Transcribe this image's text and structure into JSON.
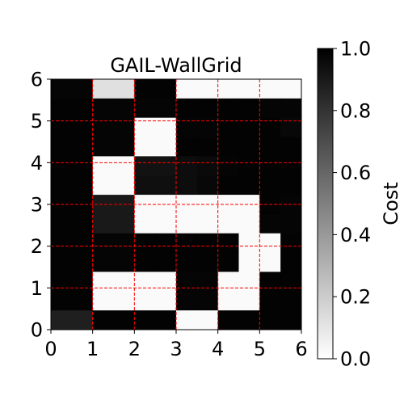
{
  "chart_data": {
    "type": "heatmap",
    "title": "GAIL-WallGrid",
    "xlabel": "",
    "ylabel": "",
    "xlim": [
      0,
      6
    ],
    "ylim": [
      0,
      6
    ],
    "xticks": [
      "0",
      "1",
      "2",
      "3",
      "4",
      "5",
      "6"
    ],
    "yticks": [
      "0",
      "1",
      "2",
      "3",
      "4",
      "5",
      "6"
    ],
    "grid": true,
    "grid_color": "#ff0000",
    "colormap": "gray_r",
    "colorbar": {
      "label": "Cost",
      "min": 0.0,
      "max": 1.0,
      "ticks": [
        "0.0",
        "0.2",
        "0.4",
        "0.6",
        "0.8",
        "1.0"
      ]
    },
    "rows_top_to_bottom": [
      [
        0.98,
        0.98,
        0.12,
        0.12,
        0.99,
        0.99,
        0.02,
        0.02,
        0.02,
        0.02,
        0.02,
        0.02
      ],
      [
        0.99,
        0.99,
        0.98,
        0.98,
        0.98,
        0.98,
        0.99,
        0.99,
        0.99,
        0.99,
        0.98,
        0.98
      ],
      [
        0.99,
        0.99,
        0.98,
        0.98,
        0.02,
        0.02,
        0.98,
        0.98,
        0.99,
        0.99,
        0.99,
        0.97
      ],
      [
        0.99,
        0.99,
        0.98,
        0.98,
        0.02,
        0.02,
        0.99,
        0.99,
        0.99,
        0.99,
        0.99,
        0.99
      ],
      [
        0.99,
        0.99,
        0.02,
        0.02,
        0.93,
        0.93,
        0.95,
        0.96,
        0.98,
        0.99,
        0.99,
        0.99
      ],
      [
        0.99,
        0.99,
        0.02,
        0.02,
        0.94,
        0.94,
        0.95,
        0.97,
        0.99,
        0.99,
        0.99,
        0.99
      ],
      [
        0.99,
        0.99,
        0.9,
        0.9,
        0.02,
        0.02,
        0.02,
        0.02,
        0.02,
        0.02,
        0.99,
        0.98
      ],
      [
        0.99,
        0.99,
        0.9,
        0.9,
        0.02,
        0.02,
        0.02,
        0.02,
        0.02,
        0.02,
        0.98,
        0.98
      ],
      [
        0.99,
        0.99,
        0.98,
        0.98,
        0.99,
        0.99,
        0.99,
        0.99,
        0.99,
        0.02,
        0.02,
        0.99
      ],
      [
        0.99,
        0.99,
        0.98,
        0.98,
        0.99,
        0.99,
        0.99,
        0.99,
        0.99,
        0.02,
        0.02,
        0.99
      ],
      [
        0.99,
        0.99,
        0.02,
        0.02,
        0.02,
        0.02,
        0.98,
        0.98,
        0.02,
        0.02,
        0.99,
        0.99
      ],
      [
        0.99,
        0.99,
        0.02,
        0.02,
        0.02,
        0.02,
        0.98,
        0.98,
        0.02,
        0.02,
        0.99,
        0.99
      ],
      [
        0.88,
        0.88,
        0.99,
        0.99,
        0.99,
        0.99,
        0.02,
        0.02,
        0.99,
        0.99,
        0.99,
        0.99
      ]
    ]
  }
}
